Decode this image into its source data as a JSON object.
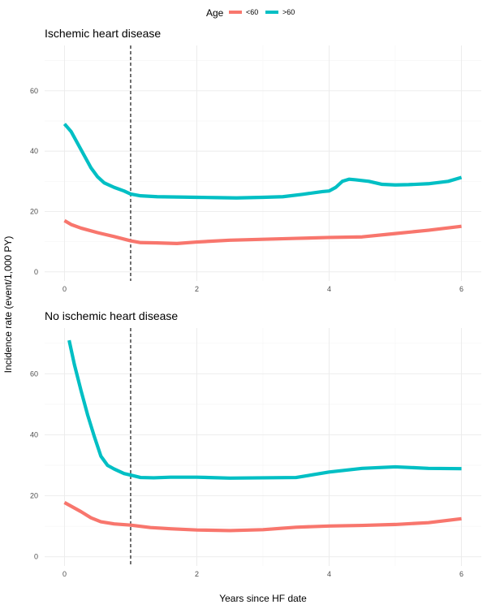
{
  "legend": {
    "title": "Age",
    "items": [
      {
        "label": "<60",
        "color": "#F8766D"
      },
      {
        "label": ">60",
        "color": "#00BFC4"
      }
    ]
  },
  "axes": {
    "xlabel": "Years since HF date",
    "ylabel": "Incidence rate (event/1,000 PY)"
  },
  "chart_data": [
    {
      "type": "line",
      "title": "Ischemic heart disease",
      "xlim": [
        -0.3,
        6.3
      ],
      "ylim": [
        -3,
        75
      ],
      "x_ticks": [
        0,
        2,
        4,
        6
      ],
      "y_ticks": [
        0,
        20,
        40,
        60
      ],
      "vline_x": 1,
      "series": [
        {
          "name": "<60",
          "color": "#F8766D",
          "x": [
            0,
            0.1,
            0.25,
            0.5,
            0.75,
            1.0,
            1.15,
            1.4,
            1.7,
            2.0,
            2.5,
            3.0,
            3.5,
            4.0,
            4.5,
            5.0,
            5.5,
            6.0
          ],
          "y": [
            17,
            15.7,
            14.5,
            13,
            11.7,
            10.3,
            9.7,
            9.6,
            9.4,
            9.9,
            10.5,
            10.8,
            11.1,
            11.4,
            11.6,
            12.7,
            13.8,
            15.1
          ]
        },
        {
          "name": ">60",
          "color": "#00BFC4",
          "x": [
            0,
            0.1,
            0.2,
            0.3,
            0.4,
            0.5,
            0.6,
            0.75,
            0.9,
            1.0,
            1.15,
            1.4,
            1.7,
            2.0,
            2.3,
            2.6,
            3.0,
            3.3,
            3.6,
            3.9,
            4.0,
            4.1,
            4.2,
            4.3,
            4.4,
            4.6,
            4.8,
            5.0,
            5.2,
            5.5,
            5.8,
            6.0
          ],
          "y": [
            49,
            46.5,
            42.5,
            38.5,
            34.5,
            31.5,
            29.5,
            28,
            26.8,
            25.8,
            25.2,
            24.9,
            24.8,
            24.7,
            24.6,
            24.5,
            24.7,
            24.9,
            25.7,
            26.6,
            26.8,
            28,
            30,
            30.7,
            30.5,
            30,
            29,
            28.8,
            28.9,
            29.2,
            30,
            31.3
          ]
        }
      ]
    },
    {
      "type": "line",
      "title": "No ischemic heart disease",
      "xlim": [
        -0.3,
        6.3
      ],
      "ylim": [
        -3,
        75
      ],
      "x_ticks": [
        0,
        2,
        4,
        6
      ],
      "y_ticks": [
        0,
        20,
        40,
        60
      ],
      "vline_x": 1,
      "series": [
        {
          "name": "<60",
          "color": "#F8766D",
          "x": [
            0,
            0.1,
            0.25,
            0.4,
            0.55,
            0.75,
            1.0,
            1.3,
            1.6,
            2.0,
            2.5,
            3.0,
            3.5,
            4.0,
            4.5,
            5.0,
            5.5,
            6.0
          ],
          "y": [
            17.8,
            16.6,
            14.8,
            12.8,
            11.5,
            10.8,
            10.4,
            9.6,
            9.2,
            8.8,
            8.6,
            8.9,
            9.7,
            10.1,
            10.3,
            10.6,
            11.2,
            12.5
          ]
        },
        {
          "name": ">60",
          "color": "#00BFC4",
          "x": [
            0.07,
            0.15,
            0.25,
            0.35,
            0.45,
            0.55,
            0.65,
            0.75,
            0.9,
            1.0,
            1.15,
            1.35,
            1.6,
            2.0,
            2.5,
            3.0,
            3.5,
            4.0,
            4.5,
            5.0,
            5.1,
            5.5,
            6.0
          ],
          "y": [
            71,
            63,
            54.5,
            46.5,
            39.5,
            33,
            30,
            28.8,
            27.3,
            26.8,
            26,
            25.9,
            26.1,
            26.1,
            25.8,
            25.9,
            26,
            27.8,
            29,
            29.5,
            29.4,
            29,
            28.9
          ]
        }
      ]
    }
  ]
}
